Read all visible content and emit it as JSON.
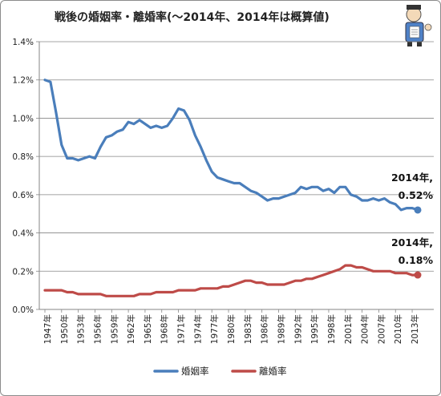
{
  "chart_data": {
    "type": "line",
    "title": "戦後の婚姻率・離婚率(〜2014年、2014年は概算値)",
    "xlabel": "",
    "ylabel": "",
    "ylim": [
      0,
      1.4
    ],
    "yticks": [
      "0.0%",
      "0.2%",
      "0.4%",
      "0.6%",
      "0.8%",
      "1.0%",
      "1.2%",
      "1.4%"
    ],
    "grid": true,
    "legend_position": "bottom",
    "x": [
      1947,
      1948,
      1949,
      1950,
      1951,
      1952,
      1953,
      1954,
      1955,
      1956,
      1957,
      1958,
      1959,
      1960,
      1961,
      1962,
      1963,
      1964,
      1965,
      1966,
      1967,
      1968,
      1969,
      1970,
      1971,
      1972,
      1973,
      1974,
      1975,
      1976,
      1977,
      1978,
      1979,
      1980,
      1981,
      1982,
      1983,
      1984,
      1985,
      1986,
      1987,
      1988,
      1989,
      1990,
      1991,
      1992,
      1993,
      1994,
      1995,
      1996,
      1997,
      1998,
      1999,
      2000,
      2001,
      2002,
      2003,
      2004,
      2005,
      2006,
      2007,
      2008,
      2009,
      2010,
      2011,
      2012,
      2013,
      2014
    ],
    "xtick_labels": [
      "1947年",
      "1950年",
      "1953年",
      "1956年",
      "1959年",
      "1962年",
      "1965年",
      "1968年",
      "1971年",
      "1974年",
      "1977年",
      "1980年",
      "1983年",
      "1986年",
      "1989年",
      "1992年",
      "1995年",
      "1998年",
      "2001年",
      "2004年",
      "2007年",
      "2010年",
      "2013年"
    ],
    "series": [
      {
        "name": "婚姻率",
        "color": "#4a7ebb",
        "values": [
          1.2,
          1.19,
          1.03,
          0.86,
          0.79,
          0.79,
          0.78,
          0.79,
          0.8,
          0.79,
          0.85,
          0.9,
          0.91,
          0.93,
          0.94,
          0.98,
          0.97,
          0.99,
          0.97,
          0.95,
          0.96,
          0.95,
          0.96,
          1.0,
          1.05,
          1.04,
          0.99,
          0.91,
          0.85,
          0.78,
          0.72,
          0.69,
          0.68,
          0.67,
          0.66,
          0.66,
          0.64,
          0.62,
          0.61,
          0.59,
          0.57,
          0.58,
          0.58,
          0.59,
          0.6,
          0.61,
          0.64,
          0.63,
          0.64,
          0.64,
          0.62,
          0.63,
          0.61,
          0.64,
          0.64,
          0.6,
          0.59,
          0.57,
          0.57,
          0.58,
          0.57,
          0.58,
          0.56,
          0.55,
          0.52,
          0.53,
          0.53,
          0.52
        ]
      },
      {
        "name": "離婚率",
        "color": "#be4b48",
        "values": [
          0.1,
          0.1,
          0.1,
          0.1,
          0.09,
          0.09,
          0.08,
          0.08,
          0.08,
          0.08,
          0.08,
          0.07,
          0.07,
          0.07,
          0.07,
          0.07,
          0.07,
          0.08,
          0.08,
          0.08,
          0.09,
          0.09,
          0.09,
          0.09,
          0.1,
          0.1,
          0.1,
          0.1,
          0.11,
          0.11,
          0.11,
          0.11,
          0.12,
          0.12,
          0.13,
          0.14,
          0.15,
          0.15,
          0.14,
          0.14,
          0.13,
          0.13,
          0.13,
          0.13,
          0.14,
          0.15,
          0.15,
          0.16,
          0.16,
          0.17,
          0.18,
          0.19,
          0.2,
          0.21,
          0.23,
          0.23,
          0.22,
          0.22,
          0.21,
          0.2,
          0.2,
          0.2,
          0.2,
          0.19,
          0.19,
          0.19,
          0.18,
          0.18
        ]
      }
    ],
    "annotations": [
      {
        "series": "婚姻率",
        "line1": "2014年,",
        "line2": "0.52%"
      },
      {
        "series": "離婚率",
        "line1": "2014年,",
        "line2": "0.18%"
      }
    ]
  }
}
